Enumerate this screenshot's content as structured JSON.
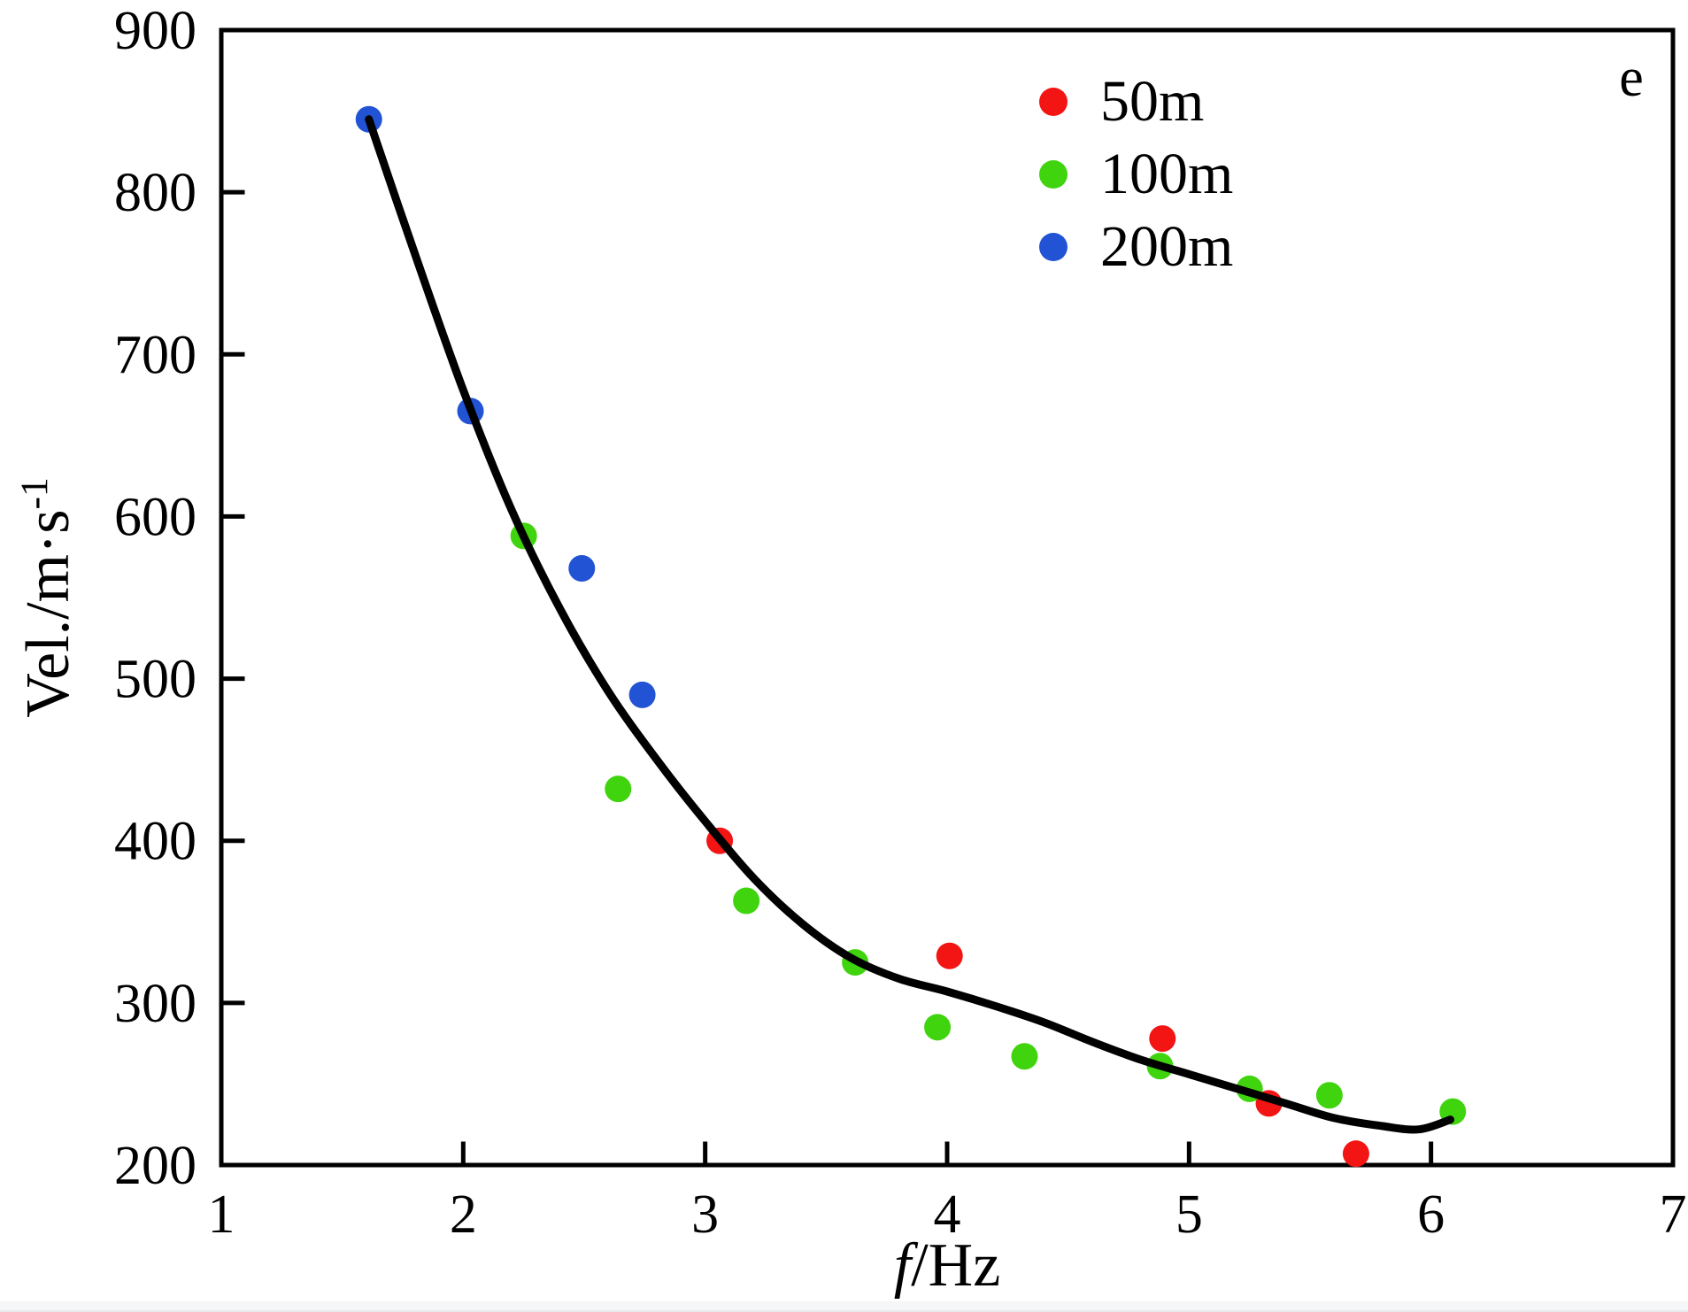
{
  "panel_label": "e",
  "axes": {
    "x": {
      "label_italic": "f",
      "label_rest": "/Hz",
      "min": 1,
      "max": 7,
      "ticks": [
        1,
        2,
        3,
        4,
        5,
        6,
        7
      ]
    },
    "y": {
      "label_main": "Vel./m·s",
      "label_superscript": "-1",
      "min": 200,
      "max": 900,
      "ticks": [
        200,
        300,
        400,
        500,
        600,
        700,
        800,
        900
      ]
    }
  },
  "colors": {
    "axis": "#000000",
    "curve": "#000000",
    "series_50m": "#f31414",
    "series_100m": "#3fd40e",
    "series_200m": "#2153d4",
    "background": "#ffffff"
  },
  "chart_data": {
    "type": "scatter",
    "title": "",
    "xlabel": "f/Hz",
    "ylabel": "Vel./m·s⁻¹",
    "xlim": [
      1,
      7
    ],
    "ylim": [
      200,
      900
    ],
    "grid": false,
    "legend_position": "upper right inside",
    "panel_tag": "e",
    "series": [
      {
        "name": "50m",
        "color": "#f31414",
        "points": [
          [
            3.06,
            400
          ],
          [
            4.01,
            329
          ],
          [
            4.89,
            278
          ],
          [
            5.33,
            238
          ],
          [
            5.69,
            207
          ]
        ]
      },
      {
        "name": "100m",
        "color": "#3fd40e",
        "points": [
          [
            2.25,
            588
          ],
          [
            2.64,
            432
          ],
          [
            3.17,
            363
          ],
          [
            3.62,
            325
          ],
          [
            3.96,
            285
          ],
          [
            4.32,
            267
          ],
          [
            4.88,
            261
          ],
          [
            5.25,
            247
          ],
          [
            5.58,
            243
          ],
          [
            6.09,
            233
          ]
        ]
      },
      {
        "name": "200m",
        "color": "#2153d4",
        "points": [
          [
            1.61,
            845
          ],
          [
            2.03,
            665
          ],
          [
            2.49,
            568
          ],
          [
            2.74,
            490
          ]
        ]
      }
    ],
    "fit_curve": {
      "name": "smoothed trend",
      "color": "#000000",
      "points": [
        [
          1.61,
          845
        ],
        [
          1.8,
          762
        ],
        [
          2.0,
          678
        ],
        [
          2.2,
          604
        ],
        [
          2.4,
          543
        ],
        [
          2.6,
          492
        ],
        [
          2.8,
          450
        ],
        [
          3.0,
          412
        ],
        [
          3.2,
          377
        ],
        [
          3.4,
          349
        ],
        [
          3.6,
          328
        ],
        [
          3.8,
          315
        ],
        [
          4.0,
          307
        ],
        [
          4.2,
          298
        ],
        [
          4.4,
          288
        ],
        [
          4.6,
          276
        ],
        [
          4.8,
          265
        ],
        [
          5.0,
          256
        ],
        [
          5.2,
          247
        ],
        [
          5.4,
          238
        ],
        [
          5.6,
          229
        ],
        [
          5.8,
          224
        ],
        [
          5.95,
          222
        ],
        [
          6.08,
          228
        ]
      ]
    }
  }
}
